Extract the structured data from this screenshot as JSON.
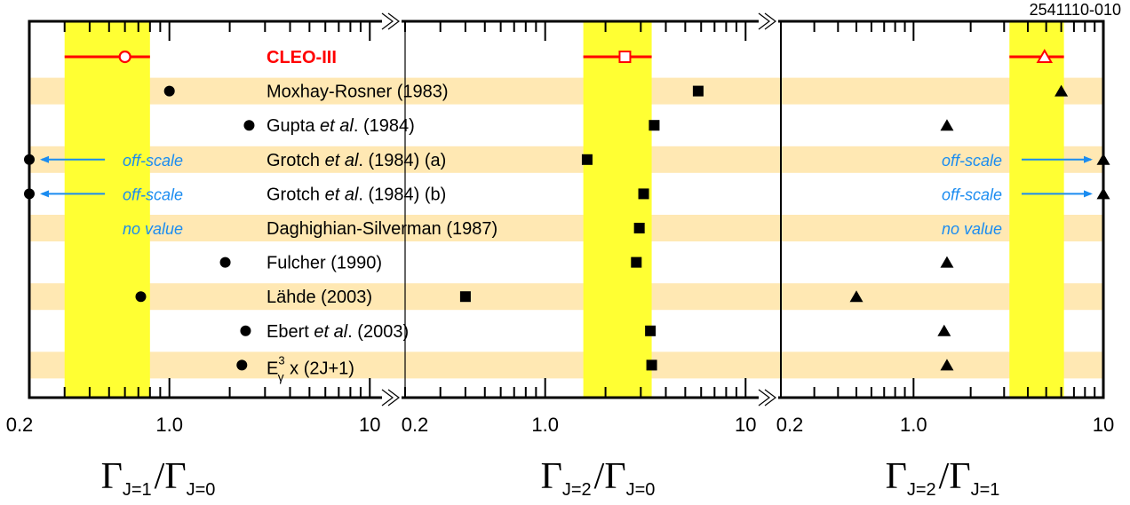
{
  "figure_id": "2541110-010",
  "colors": {
    "band": "#ffe8b3",
    "cleo_band": "#ffff33",
    "cleo": "#ff0000",
    "arrow": "#1b8cf0",
    "marker": "#000000"
  },
  "rows": [
    {
      "label": "CLEO-III",
      "cleo": true
    },
    {
      "label": "Moxhay-Rosner (1983)"
    },
    {
      "label_pre": "Gupta ",
      "label_it": "et al",
      "label_post": ". (1984)"
    },
    {
      "label_pre": "Grotch ",
      "label_it": "et al",
      "label_post": ". (1984) (a)"
    },
    {
      "label_pre": "Grotch ",
      "label_it": "et al",
      "label_post": ". (1984) (b)"
    },
    {
      "label": "Daghighian-Silverman (1987)"
    },
    {
      "label": "Fulcher (1990)"
    },
    {
      "label": "Lähde (2003)"
    },
    {
      "label_pre": "Ebert ",
      "label_it": "et al",
      "label_post": ". (2003)"
    },
    {
      "label_special": "Egamma3",
      "base": "E",
      "sup": "3",
      "sub": "γ",
      "rest": " x (2J+1)"
    }
  ],
  "off_scale_text": "off-scale",
  "no_value_text": "no value",
  "chart_data": [
    {
      "type": "scatter",
      "xscale": "log",
      "xlim": [
        0.2,
        15
      ],
      "ticks": [
        "0.2",
        "1.0",
        "10"
      ],
      "ylabel_parts": {
        "gamma": "Γ",
        "num_sub": "J=1",
        "den_sub": "J=0"
      },
      "marker": "circle",
      "cleo": {
        "value": 0.6,
        "band": [
          0.3,
          0.8
        ]
      },
      "values": [
        null,
        1.0,
        2.5,
        null,
        null,
        null,
        1.9,
        0.72,
        2.4,
        2.3
      ],
      "off_scale_left": [
        3,
        4
      ],
      "no_value": [
        5
      ]
    },
    {
      "type": "scatter",
      "xscale": "log",
      "xlim": [
        0.2,
        15
      ],
      "ticks": [
        "0.2",
        "1.0",
        "10"
      ],
      "ylabel_parts": {
        "gamma": "Γ",
        "num_sub": "J=2",
        "den_sub": "J=0"
      },
      "marker": "square",
      "cleo": {
        "value": 2.5,
        "band": [
          1.55,
          3.4
        ]
      },
      "values": [
        null,
        5.8,
        3.5,
        1.62,
        3.1,
        2.95,
        2.85,
        0.4,
        3.35,
        3.4
      ],
      "off_scale_left": [],
      "no_value": []
    },
    {
      "type": "scatter",
      "xscale": "log",
      "xlim": [
        0.2,
        10
      ],
      "ticks": [
        "0.2",
        "1.0",
        "10"
      ],
      "ylabel_parts": {
        "gamma": "Γ",
        "num_sub": "J=2",
        "den_sub": "J=1"
      },
      "marker": "triangle",
      "cleo": {
        "value": 4.9,
        "band": [
          3.2,
          6.2
        ]
      },
      "values": [
        null,
        6.0,
        1.5,
        null,
        null,
        null,
        1.5,
        0.5,
        1.45,
        1.5
      ],
      "off_scale_right": [
        3,
        4
      ],
      "no_value": [
        5
      ]
    }
  ]
}
